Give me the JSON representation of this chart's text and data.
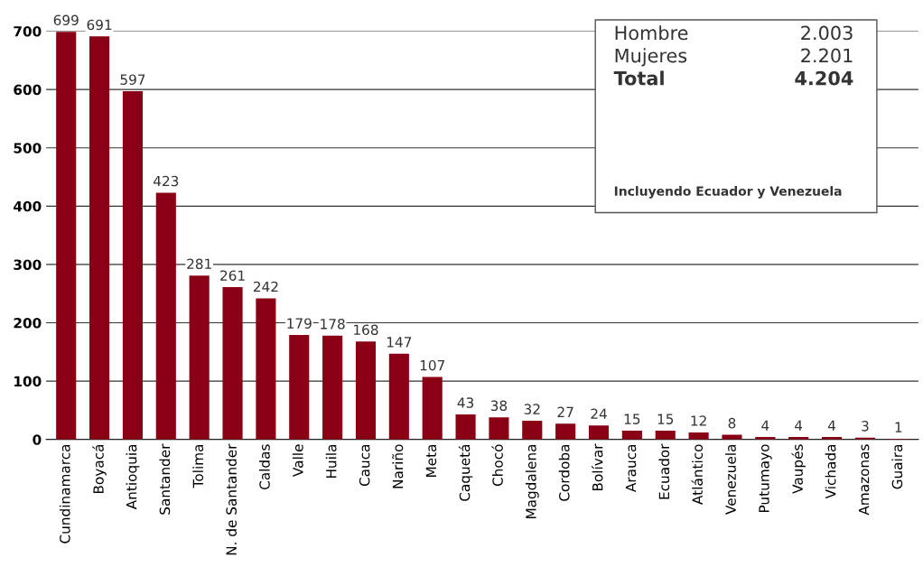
{
  "chart_data": {
    "type": "bar",
    "categories": [
      "Cundinamarca",
      "Boyacá",
      "Antioquia",
      "Santander",
      "Tolima",
      "N. de Santander",
      "Caldas",
      "Valle",
      "Huila",
      "Cauca",
      "Nariño",
      "Meta",
      "Caquetá",
      "Chocó",
      "Magdalena",
      "Cordoba",
      "Bolívar",
      "Arauca",
      "Ecuador",
      "Atlántico",
      "Venezuela",
      "Putumayo",
      "Vaupés",
      "Vichada",
      "Amazonas",
      "Guaira"
    ],
    "values": [
      699,
      691,
      597,
      423,
      281,
      261,
      242,
      179,
      178,
      168,
      147,
      107,
      43,
      38,
      32,
      27,
      24,
      15,
      15,
      12,
      8,
      4,
      4,
      4,
      3,
      1
    ],
    "color": "#8a0014",
    "ylim": [
      0,
      700
    ],
    "yticks": [
      0,
      100,
      200,
      300,
      400,
      500,
      600,
      700
    ],
    "grid": "y",
    "data_labels": true,
    "annotations": [
      "Hombre",
      "2.003",
      "Mujeres",
      "2.201",
      "Total",
      "4.204",
      "Incluyendo Ecuador y Venezuela"
    ]
  }
}
